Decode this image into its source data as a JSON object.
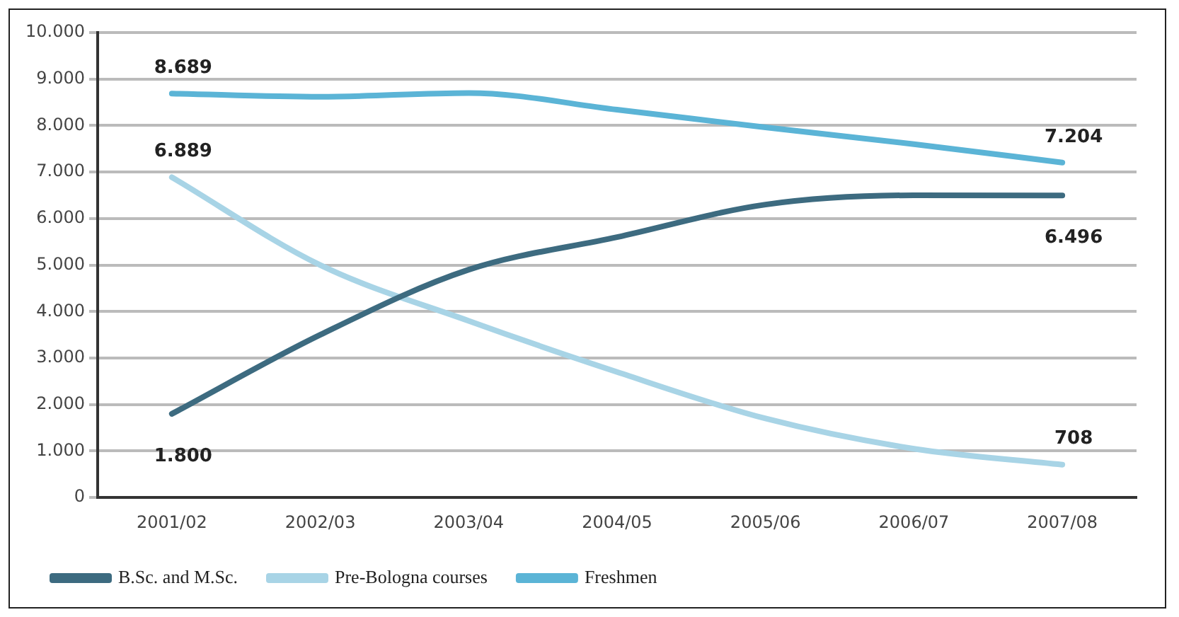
{
  "chart_data": {
    "type": "line",
    "categories": [
      "2001/02",
      "2002/03",
      "2003/04",
      "2004/05",
      "2005/06",
      "2006/07",
      "2007/08"
    ],
    "series": [
      {
        "name": "B.Sc. and M.Sc.",
        "color": "#3d6b80",
        "values": [
          1800,
          3500,
          4900,
          5600,
          6300,
          6500,
          6496
        ],
        "value_labels": [
          "1.800",
          null,
          null,
          null,
          null,
          null,
          "6.496"
        ]
      },
      {
        "name": "Pre-Bologna courses",
        "color": "#a8d4e6",
        "values": [
          6889,
          5000,
          3800,
          2700,
          1700,
          1050,
          708
        ],
        "value_labels": [
          "6.889",
          null,
          null,
          null,
          null,
          null,
          "708"
        ]
      },
      {
        "name": "Freshmen",
        "color": "#5bb4d6",
        "values": [
          8689,
          8620,
          8700,
          8340,
          7960,
          7600,
          7204
        ],
        "value_labels": [
          "8.689",
          null,
          null,
          null,
          null,
          null,
          "7.204"
        ]
      }
    ],
    "ylim": [
      0,
      10000
    ],
    "yticks": [
      {
        "value": 0,
        "label": "0"
      },
      {
        "value": 1000,
        "label": "1.000"
      },
      {
        "value": 2000,
        "label": "2.000"
      },
      {
        "value": 3000,
        "label": "3.000"
      },
      {
        "value": 4000,
        "label": "4.000"
      },
      {
        "value": 5000,
        "label": "5.000"
      },
      {
        "value": 6000,
        "label": "6.000"
      },
      {
        "value": 7000,
        "label": "7.000"
      },
      {
        "value": 8000,
        "label": "8.000"
      },
      {
        "value": 9000,
        "label": "9.000"
      },
      {
        "value": 10000,
        "label": "10.000"
      }
    ],
    "grid": "y",
    "legend": "bottom",
    "marker": "none",
    "line_style": "solid"
  }
}
